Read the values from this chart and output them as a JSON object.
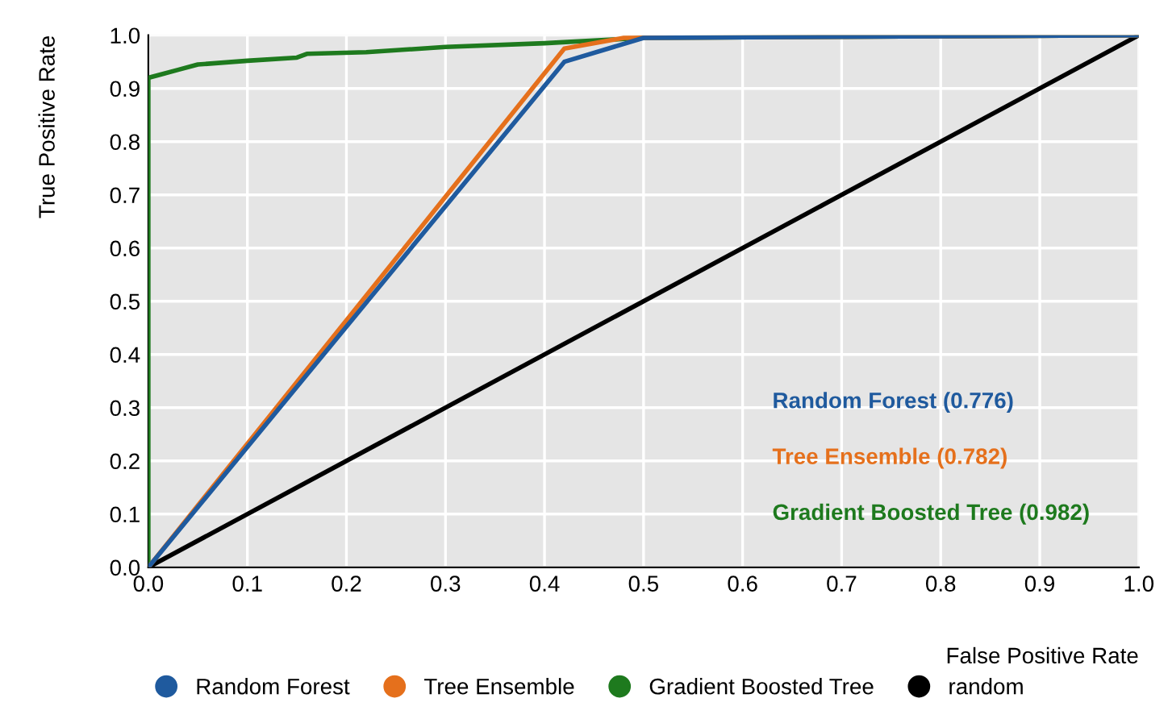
{
  "chart_data": {
    "type": "line",
    "xlabel": "False Positive Rate",
    "ylabel": "True Positive Rate",
    "xlim": [
      0,
      1
    ],
    "ylim": [
      0,
      1
    ],
    "xticks": [
      {
        "value": 0,
        "label": "0.0"
      },
      0.1,
      0.2,
      0.3,
      0.4,
      0.5,
      0.6,
      0.7,
      0.8,
      0.9,
      {
        "value": 1,
        "label": "1.0"
      }
    ],
    "yticks": [
      {
        "value": 0,
        "label": "0.0"
      },
      0.1,
      0.2,
      0.3,
      0.4,
      0.5,
      0.6,
      0.7,
      0.8,
      0.9,
      {
        "value": 1,
        "label": "1.0"
      }
    ],
    "grid": true,
    "legend": "bottom",
    "marker": "none",
    "line_style": "solid",
    "series": [
      {
        "name": "Random Forest",
        "color": "#1f5a9e",
        "x": [
          0,
          0.42,
          0.5,
          1
        ],
        "values": [
          0,
          0.95,
          0.995,
          1
        ]
      },
      {
        "name": "Tree Ensemble",
        "color": "#e5701c",
        "x": [
          0,
          0.42,
          0.48,
          1
        ],
        "values": [
          0,
          0.975,
          0.995,
          1
        ]
      },
      {
        "name": "Gradient Boosted Tree",
        "color": "#1e7a1e",
        "x": [
          0,
          0,
          0.01,
          0.03,
          0.05,
          0.1,
          0.15,
          0.16,
          0.22,
          0.3,
          0.4,
          0.5,
          1
        ],
        "values": [
          0,
          0.92,
          0.925,
          0.935,
          0.945,
          0.952,
          0.958,
          0.965,
          0.968,
          0.978,
          0.985,
          0.995,
          1
        ]
      },
      {
        "name": "random",
        "color": "#000000",
        "x": [
          0,
          1
        ],
        "values": [
          0,
          1
        ]
      }
    ],
    "annotations": [
      "Random Forest (0.776)",
      "Tree Ensemble (0.782)",
      "Gradient Boosted Tree (0.982)"
    ]
  }
}
